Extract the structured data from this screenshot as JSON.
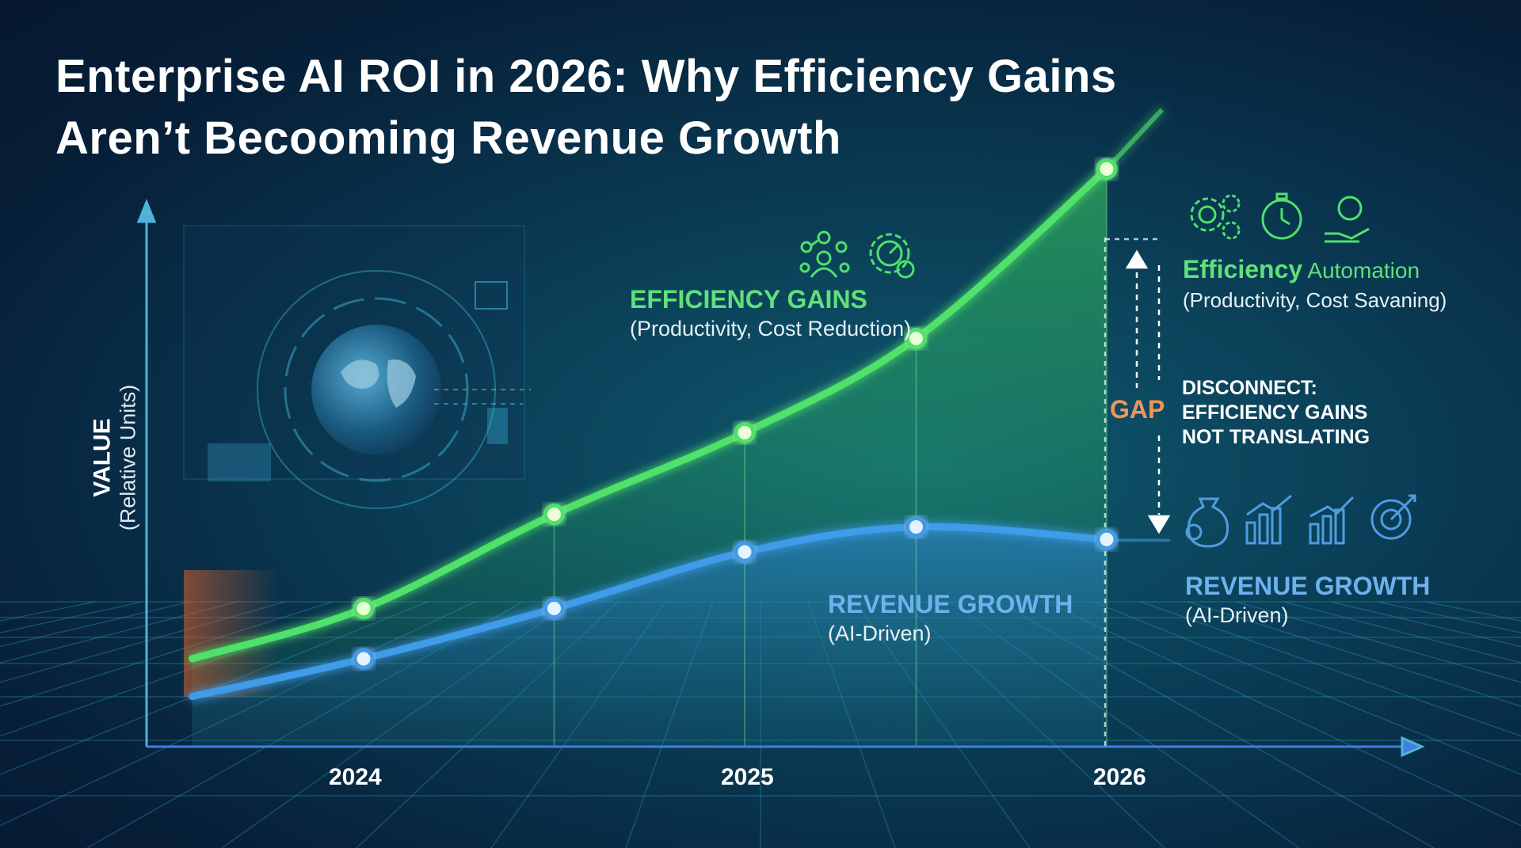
{
  "title": {
    "line1": "Enterprise AI ROI in 2026: Why Efficiency Gains",
    "line2": "Aren’t Becooming Revenue Growth"
  },
  "chart_data": {
    "type": "line",
    "xlabel": "",
    "ylabel": "VALUE",
    "ylabel_sub": "(Relative Units)",
    "x_ticks": [
      "2024",
      "2025",
      "2026"
    ],
    "x": [
      2023.55,
      2024.0,
      2024.5,
      2025.0,
      2025.45,
      2025.95
    ],
    "ylim": [
      0,
      100
    ],
    "grid": false,
    "series": [
      {
        "name": "EFFICIENCY GAINS",
        "values": [
          14,
          22,
          37,
          50,
          65,
          92
        ],
        "color": "#4fe16a"
      },
      {
        "name": "REVENUE GROWTH",
        "values": [
          8,
          14,
          22,
          31,
          35,
          33
        ],
        "color": "#3f9be8"
      }
    ],
    "annotations": {
      "efficiency_label": "EFFICIENCY GAINS",
      "efficiency_sub": "(Productivity, Cost Reduction)",
      "revenue_label": "REVENUE GROWTH",
      "revenue_sub": "(AI-Driven)",
      "right_efficiency_bold": "Efficiency",
      "right_efficiency_rest": " Automation",
      "right_efficiency_sub": "(Productivity, Cost Savaning)",
      "gap_label": "GAP",
      "disconnect_lines": [
        "DISCONNECT:",
        "EFFICIENCY GAINS",
        "NOT TRANSLATING"
      ],
      "right_revenue_label": "REVENUE GROWTH",
      "right_revenue_sub": "(AI-Driven)"
    }
  },
  "colors": {
    "efficiency": "#4fe16a",
    "revenue": "#3f9be8",
    "gap": "#f0955a",
    "axis": "#4fb3d9"
  },
  "icons": {
    "efficiency_mid": [
      "team-network-icon",
      "gear-gauge-icon"
    ],
    "efficiency_right": [
      "gears-coin-icon",
      "stopwatch-icon",
      "hand-dollar-icon"
    ],
    "revenue_right": [
      "money-bag-icon",
      "bar-growth-icon",
      "bar-growth-2-icon",
      "target-arrow-icon"
    ],
    "decor": [
      "globe-icon"
    ]
  }
}
